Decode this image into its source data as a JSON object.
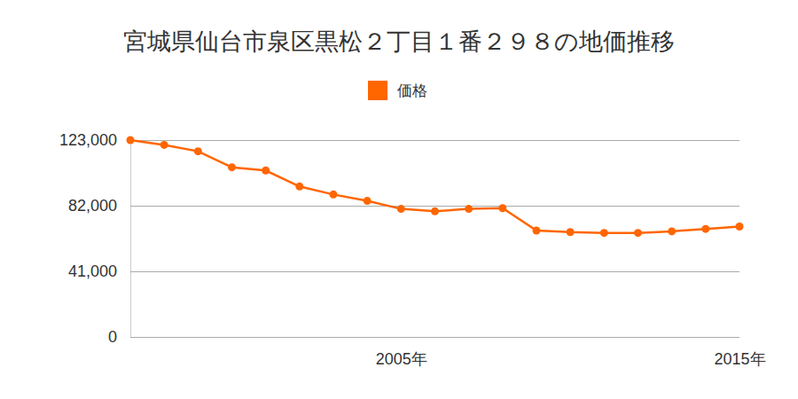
{
  "chart_data": {
    "type": "line",
    "title": "宮城県仙台市泉区黒松２丁目１番２９８の地価推移",
    "categories": [
      null,
      null,
      null,
      null,
      null,
      null,
      null,
      null,
      "2005年",
      null,
      null,
      null,
      null,
      null,
      null,
      null,
      null,
      null,
      "2015年"
    ],
    "series": [
      {
        "name": "価格",
        "color": "#ff6600",
        "marker": "circle",
        "values": [
          123000,
          120000,
          116000,
          106000,
          104000,
          94000,
          89000,
          85000,
          80000,
          78500,
          80000,
          80500,
          66500,
          65500,
          65000,
          65000,
          66000,
          67500,
          69000
        ]
      }
    ],
    "ylim": [
      0,
      123000
    ],
    "yticks": [
      0,
      {
        "value": 41000,
        "label": "41,000"
      },
      {
        "value": 82000,
        "label": "82,000"
      },
      {
        "value": 123000,
        "label": "123,000"
      }
    ],
    "grid": true,
    "legend": "top"
  }
}
